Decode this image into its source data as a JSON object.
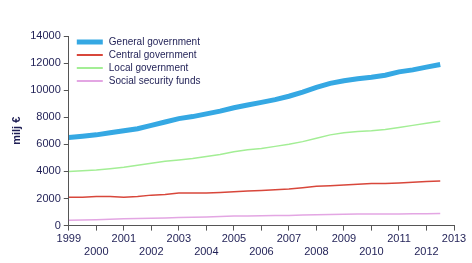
{
  "chart_data": {
    "type": "line",
    "y_label": "milj €",
    "x": [
      1999,
      1999.5,
      2000,
      2000.5,
      2001,
      2001.5,
      2002,
      2002.5,
      2003,
      2003.5,
      2004,
      2004.5,
      2005,
      2005.5,
      2006,
      2006.5,
      2007,
      2007.5,
      2008,
      2008.5,
      2009,
      2009.5,
      2010,
      2010.5,
      2011,
      2011.5,
      2012,
      2012.5
    ],
    "series": [
      {
        "name": "General government",
        "color": "#35a8e3",
        "values": [
          6500,
          6600,
          6700,
          6850,
          7000,
          7150,
          7400,
          7650,
          7900,
          8050,
          8250,
          8450,
          8700,
          8900,
          9100,
          9300,
          9550,
          9850,
          10200,
          10500,
          10700,
          10850,
          10950,
          11100,
          11350,
          11500,
          11700,
          11900
        ]
      },
      {
        "name": "Central government",
        "color": "#d8473b",
        "values": [
          2100,
          2100,
          2150,
          2150,
          2100,
          2150,
          2250,
          2300,
          2400,
          2400,
          2400,
          2450,
          2500,
          2550,
          2600,
          2650,
          2700,
          2800,
          2900,
          2950,
          3000,
          3050,
          3100,
          3100,
          3150,
          3200,
          3250,
          3300
        ]
      },
      {
        "name": "Local government",
        "color": "#a3ee95",
        "values": [
          4000,
          4050,
          4100,
          4200,
          4300,
          4450,
          4600,
          4750,
          4850,
          4950,
          5100,
          5250,
          5450,
          5600,
          5700,
          5850,
          6000,
          6200,
          6450,
          6700,
          6850,
          6950,
          7000,
          7100,
          7250,
          7400,
          7550,
          7700
        ]
      },
      {
        "name": "Social security funds",
        "color": "#e3a6e3",
        "values": [
          400,
          420,
          440,
          470,
          500,
          520,
          550,
          570,
          600,
          620,
          640,
          670,
          700,
          710,
          720,
          740,
          750,
          780,
          800,
          820,
          840,
          850,
          850,
          860,
          860,
          870,
          880,
          900
        ]
      }
    ],
    "xlim": [
      1999,
      2013
    ],
    "xticks": [
      1999,
      2000,
      2001,
      2002,
      2003,
      2004,
      2005,
      2006,
      2007,
      2008,
      2009,
      2010,
      2011,
      2012,
      2013
    ],
    "ylim": [
      0,
      14000
    ],
    "yticks": [
      0,
      2000,
      4000,
      6000,
      8000,
      10000,
      12000,
      14000
    ],
    "grid": false,
    "legend": "upper left"
  }
}
